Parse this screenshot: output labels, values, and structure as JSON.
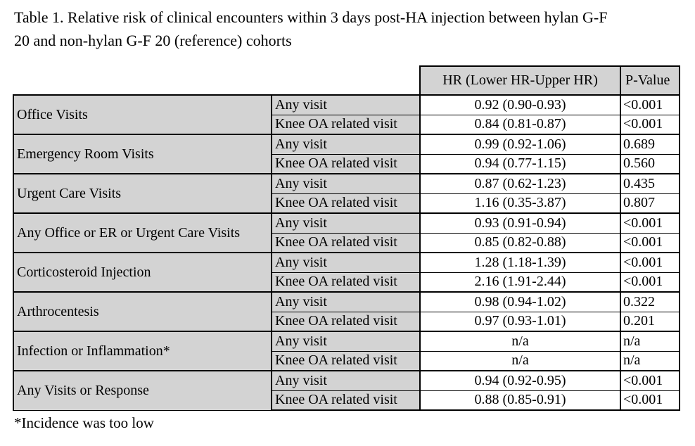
{
  "title_lines": [
    "Table 1. Relative risk of clinical encounters within 3 days post-HA injection between hylan G-F",
    "20 and non-hylan G-F 20 (reference) cohorts"
  ],
  "title_full": "Table 1. Relative risk of clinical encounters within 3 days post-HA injection between hylan G-F 20 and non-hylan G-F 20 (reference) cohorts",
  "footnote": "*Incidence was too low",
  "colors": {
    "cell_fill": "#d3d3d3",
    "border": "#000000",
    "value_fill": "#ffffff"
  },
  "table": {
    "header": {
      "hr_label": "HR (Lower HR-Upper HR)",
      "pvalue_label": "P-Value"
    },
    "groups": [
      {
        "category": "Office Visits",
        "rows": [
          {
            "visit_type": "Any visit",
            "hr": "0.92 (0.90-0.93)",
            "p": "<0.001"
          },
          {
            "visit_type": "Knee OA related visit",
            "hr": "0.84 (0.81-0.87)",
            "p": "<0.001"
          }
        ]
      },
      {
        "category": "Emergency Room Visits",
        "rows": [
          {
            "visit_type": "Any visit",
            "hr": "0.99 (0.92-1.06)",
            "p": "0.689"
          },
          {
            "visit_type": "Knee OA related visit",
            "hr": "0.94 (0.77-1.15)",
            "p": "0.560"
          }
        ]
      },
      {
        "category": "Urgent Care Visits",
        "rows": [
          {
            "visit_type": "Any visit",
            "hr": "0.87 (0.62-1.23)",
            "p": "0.435"
          },
          {
            "visit_type": "Knee OA related visit",
            "hr": "1.16 (0.35-3.87)",
            "p": "0.807"
          }
        ]
      },
      {
        "category": "Any Office or ER or Urgent Care Visits",
        "rows": [
          {
            "visit_type": "Any visit",
            "hr": "0.93 (0.91-0.94)",
            "p": "<0.001"
          },
          {
            "visit_type": "Knee OA related visit",
            "hr": "0.85 (0.82-0.88)",
            "p": "<0.001"
          }
        ]
      },
      {
        "category": "Corticosteroid Injection",
        "rows": [
          {
            "visit_type": "Any visit",
            "hr": "1.28 (1.18-1.39)",
            "p": "<0.001"
          },
          {
            "visit_type": "Knee OA related visit",
            "hr": "2.16 (1.91-2.44)",
            "p": "<0.001"
          }
        ]
      },
      {
        "category": "Arthrocentesis",
        "rows": [
          {
            "visit_type": "Any visit",
            "hr": "0.98 (0.94-1.02)",
            "p": "0.322"
          },
          {
            "visit_type": "Knee OA related visit",
            "hr": "0.97 (0.93-1.01)",
            "p": "0.201"
          }
        ]
      },
      {
        "category": "Infection or Inflammation*",
        "rows": [
          {
            "visit_type": "Any visit",
            "hr": "n/a",
            "p": "n/a"
          },
          {
            "visit_type": "Knee OA related visit",
            "hr": "n/a",
            "p": "n/a"
          }
        ]
      },
      {
        "category": "Any Visits or Response",
        "rows": [
          {
            "visit_type": "Any visit",
            "hr": "0.94 (0.92-0.95)",
            "p": "<0.001"
          },
          {
            "visit_type": "Knee OA related visit",
            "hr": "0.88 (0.85-0.91)",
            "p": "<0.001"
          }
        ]
      }
    ]
  }
}
